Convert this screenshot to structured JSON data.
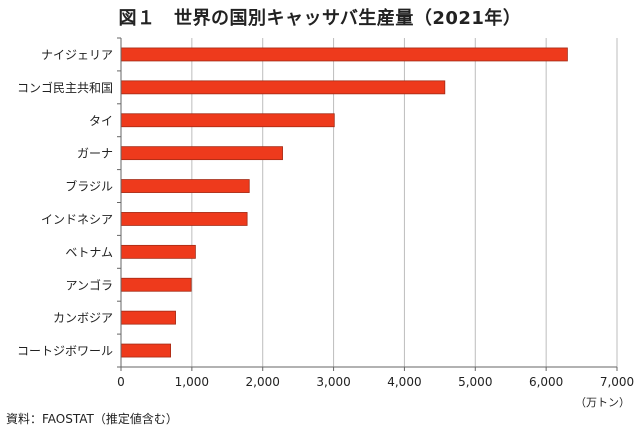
{
  "title": "図１　世界の国別キャッサバ生産量（2021年）",
  "source": "資料：FAOSTAT（推定値含む）",
  "colors": {
    "bar_fill": "#ee3a1c",
    "bar_stroke": "#a32a14",
    "grid": "#bdbdbd",
    "axis": "#666666"
  },
  "chart_data": {
    "type": "bar",
    "orientation": "horizontal",
    "title": "図１　世界の国別キャッサバ生産量（2021年）",
    "categories": [
      "ナイジェリア",
      "コンゴ民主共和国",
      "タイ",
      "ガーナ",
      "ブラジル",
      "インドネシア",
      "ベトナム",
      "アンゴラ",
      "カンボジア",
      "コートジボワール"
    ],
    "values": [
      6300,
      4570,
      3010,
      2280,
      1810,
      1780,
      1050,
      990,
      770,
      700
    ],
    "xlim": [
      0,
      7000
    ],
    "x_ticks": [
      0,
      1000,
      2000,
      3000,
      4000,
      5000,
      6000,
      7000
    ],
    "x_tick_labels": [
      "0",
      "1,000",
      "2,000",
      "3,000",
      "4,000",
      "5,000",
      "6,000",
      "7,000"
    ],
    "unit_label": "（万トン）",
    "grid": true,
    "legend": "none"
  }
}
